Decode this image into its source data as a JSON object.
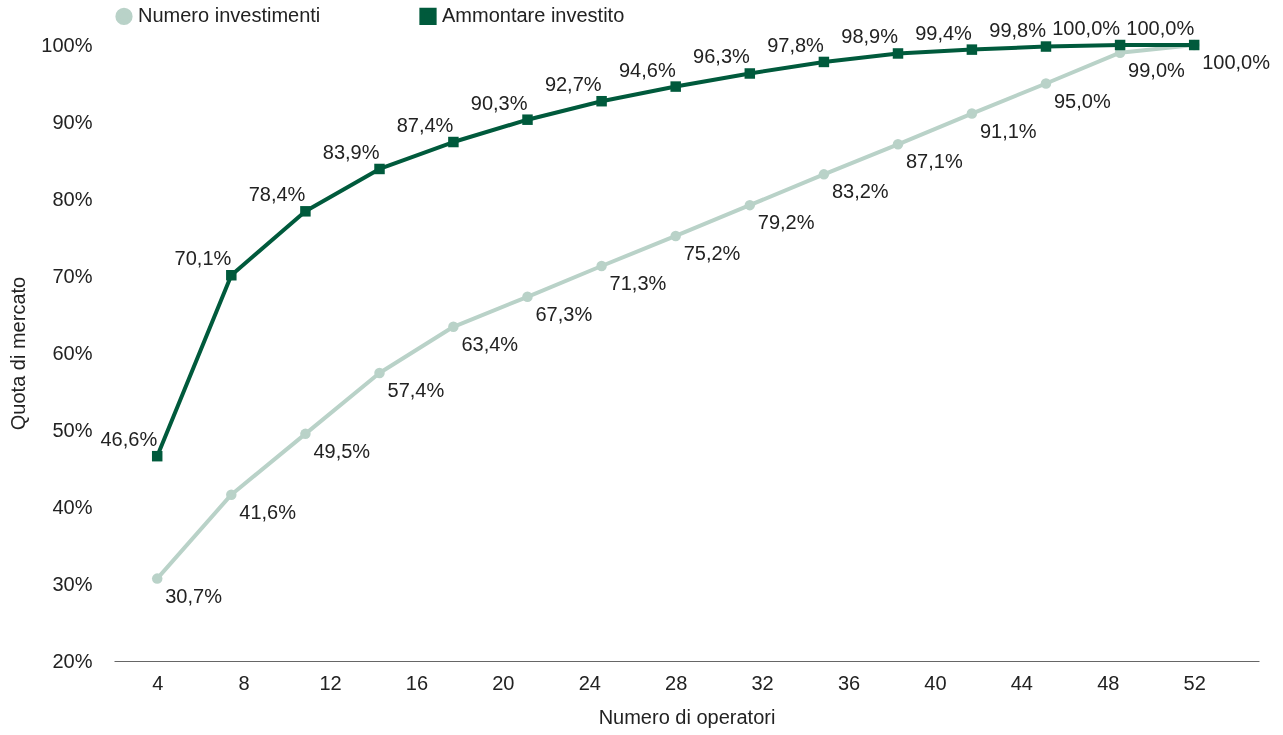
{
  "chart_data": {
    "type": "line",
    "xlabel": "Numero di operatori",
    "ylabel": "Quota di mercato",
    "x": [
      4,
      7.43,
      10.86,
      14.29,
      17.71,
      21.14,
      24.57,
      28,
      31.43,
      34.86,
      38.29,
      41.71,
      45.14,
      48.57,
      52
    ],
    "xlim": [
      2,
      55
    ],
    "xticks": [
      4,
      8,
      12,
      16,
      20,
      24,
      28,
      32,
      36,
      40,
      44,
      48,
      52
    ],
    "ylim": [
      20,
      100
    ],
    "yticks": [
      {
        "value": 20,
        "label": "20%"
      },
      {
        "value": 30,
        "label": "30%"
      },
      {
        "value": 40,
        "label": "40%"
      },
      {
        "value": 50,
        "label": "50%"
      },
      {
        "value": 60,
        "label": "60%"
      },
      {
        "value": 70,
        "label": "70%"
      },
      {
        "value": 80,
        "label": "80%"
      },
      {
        "value": 90,
        "label": "90%"
      },
      {
        "value": 100,
        "label": "100%"
      }
    ],
    "legend": "top",
    "grid": false,
    "series": [
      {
        "name": "Numero investimenti",
        "color": "#b9d2c8",
        "marker": "circle",
        "values": [
          30.7,
          41.6,
          49.5,
          57.4,
          63.4,
          67.3,
          71.3,
          75.2,
          79.2,
          83.2,
          87.1,
          91.1,
          95.0,
          99.0,
          100.0
        ],
        "value_labels": [
          "30,7%",
          "41,6%",
          "49,5%",
          "57,4%",
          "63,4%",
          "67,3%",
          "71,3%",
          "75,2%",
          "79,2%",
          "83,2%",
          "87,1%",
          "91,1%",
          "95,0%",
          "99,0%",
          "100,0%"
        ]
      },
      {
        "name": "Ammontare investito",
        "color": "#005a3c",
        "marker": "square",
        "values": [
          46.6,
          70.1,
          78.4,
          83.9,
          87.4,
          90.3,
          92.7,
          94.6,
          96.3,
          97.8,
          98.9,
          99.4,
          99.8,
          100.0,
          100.0
        ],
        "value_labels": [
          "46,6%",
          "70,1%",
          "78,4%",
          "83,9%",
          "87,4%",
          "90,3%",
          "92,7%",
          "94,6%",
          "96,3%",
          "97,8%",
          "98,9%",
          "99,4%",
          "99,8%",
          "100,0%",
          "100,0%"
        ]
      }
    ]
  }
}
